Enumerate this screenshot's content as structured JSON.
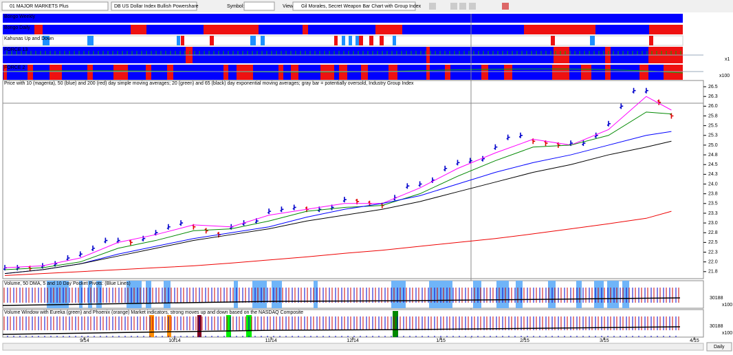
{
  "toolbar": {
    "watchlist": "01 MAJOR MARKETS Plus",
    "symbol_name": "DB US Dollar Index Bullish Powershare",
    "symbol_label": "Symbol:",
    "view_label": "View:",
    "view": "Gil Morales, Secret Weapon Bar Chart with Group Index"
  },
  "indicator_panels": [
    {
      "label": "Bongo Weekly"
    },
    {
      "label": "Bongo Daily"
    },
    {
      "label": "Kahunas Up and Down"
    },
    {
      "label": "FORCE 13",
      "scale": "x1"
    },
    {
      "label": "FORCE 2",
      "scale": "x100"
    }
  ],
  "volume_panels": [
    {
      "label": "Volume, 50 DMA, 5 and 10 Day Pocket Pivots: (Blue Lines)",
      "level": "30188",
      "scale": "x100"
    },
    {
      "label": "Volume Window with Eureka (green) and Phoenix (orange) Market indicators, strong moves up and down based on the NASDAQ Composite",
      "level": "30188",
      "scale": "x100"
    }
  ],
  "period": "Daily",
  "chart_data": {
    "type": "line",
    "title": "Price with 10 (magenta), 50 (blue) and 200 (red) day simple moving averages; 20 (green) and 65 (black) day exponential moving averages; gray bar = potentially oversold, Industry Group Index",
    "x": [
      0,
      3,
      6,
      9,
      12,
      15,
      18,
      21,
      24,
      27,
      30,
      33,
      36,
      39,
      42,
      45,
      48,
      51,
      54,
      57,
      60,
      63,
      66,
      69,
      72,
      75,
      78,
      81,
      84,
      87,
      90,
      93,
      96,
      99,
      102,
      105,
      108,
      111,
      114,
      117,
      120,
      123,
      126,
      129,
      132,
      135,
      138,
      141,
      144,
      147,
      150,
      153,
      156,
      159
    ],
    "xlim": [
      -0.5,
      165
    ],
    "xticks": [
      {
        "value": 19,
        "label": "9/14"
      },
      {
        "value": 40.5,
        "label": "10/14"
      },
      {
        "value": 63.5,
        "label": "11/14"
      },
      {
        "value": 83,
        "label": "12/14"
      },
      {
        "value": 104,
        "label": "1/15"
      },
      {
        "value": 124,
        "label": "2/15"
      },
      {
        "value": 143,
        "label": "3/15"
      },
      {
        "value": 164.5,
        "label": "4/15"
      }
    ],
    "ylim": [
      21.57,
      26.66
    ],
    "yticks": [
      26.5,
      {
        "value": 26.25,
        "label": "26.3"
      },
      {
        "value": 26,
        "label": "26.0"
      },
      {
        "value": 25.75,
        "label": "25.8"
      },
      25.5,
      {
        "value": 25.25,
        "label": "25.3"
      },
      {
        "value": 25,
        "label": "25.0"
      },
      {
        "value": 24.75,
        "label": "24.8"
      },
      24.5,
      {
        "value": 24.25,
        "label": "24.3"
      },
      {
        "value": 24,
        "label": "24.0"
      },
      {
        "value": 23.75,
        "label": "23.8"
      },
      23.5,
      {
        "value": 23.25,
        "label": "23.3"
      },
      {
        "value": 23,
        "label": "23.0"
      },
      {
        "value": 22.75,
        "label": "22.8"
      },
      22.5,
      {
        "value": 22.25,
        "label": "22.3"
      },
      {
        "value": 22,
        "label": "22.0"
      },
      {
        "value": 21.75,
        "label": "21.8"
      }
    ],
    "grid": false,
    "series": [
      {
        "style": "bar",
        "color": "#0000cc",
        "down_color": "#e00000",
        "values": [
          21.85,
          21.85,
          21.83,
          21.9,
          21.95,
          22.1,
          22.2,
          22.35,
          22.55,
          22.55,
          22.5,
          22.6,
          22.75,
          22.9,
          23.0,
          22.9,
          22.8,
          22.7,
          22.9,
          23.0,
          23.05,
          23.3,
          23.35,
          23.4,
          23.35,
          23.35,
          23.4,
          23.6,
          23.55,
          23.5,
          23.45,
          23.65,
          23.95,
          24.0,
          24.1,
          24.4,
          24.55,
          24.6,
          24.65,
          24.95,
          25.2,
          25.25,
          25.1,
          25.05,
          25.0,
          25.05,
          25.05,
          25.25,
          25.55,
          26.0,
          26.4,
          26.4,
          26.1,
          25.75
        ]
      },
      {
        "style": "line",
        "color": "#ff00ff",
        "x": [
          0,
          9,
          18,
          27,
          36,
          45,
          54,
          63,
          72,
          81,
          90,
          99,
          108,
          117,
          126,
          135,
          144,
          153,
          159
        ],
        "values": [
          21.85,
          21.9,
          22.1,
          22.5,
          22.7,
          22.95,
          22.9,
          23.2,
          23.35,
          23.5,
          23.5,
          23.9,
          24.4,
          24.8,
          25.15,
          25.0,
          25.4,
          26.25,
          25.9
        ]
      },
      {
        "style": "line",
        "color": "#008800",
        "x": [
          0,
          9,
          18,
          27,
          36,
          45,
          54,
          63,
          72,
          81,
          90,
          99,
          108,
          117,
          126,
          135,
          144,
          153,
          159
        ],
        "values": [
          21.8,
          21.85,
          22.0,
          22.35,
          22.55,
          22.8,
          22.85,
          23.05,
          23.3,
          23.4,
          23.45,
          23.75,
          24.2,
          24.6,
          24.95,
          25.0,
          25.25,
          25.85,
          25.8
        ]
      },
      {
        "style": "line",
        "color": "#0000ff",
        "x": [
          0,
          9,
          18,
          27,
          36,
          45,
          54,
          63,
          72,
          81,
          90,
          99,
          108,
          117,
          126,
          135,
          144,
          153,
          159
        ],
        "values": [
          21.7,
          21.8,
          21.95,
          22.2,
          22.4,
          22.6,
          22.75,
          22.9,
          23.15,
          23.35,
          23.5,
          23.7,
          24.0,
          24.3,
          24.55,
          24.75,
          25.0,
          25.25,
          25.35
        ]
      },
      {
        "style": "line",
        "color": "#000000",
        "x": [
          0,
          9,
          18,
          27,
          36,
          45,
          54,
          63,
          72,
          81,
          90,
          99,
          108,
          117,
          126,
          135,
          144,
          153,
          159
        ],
        "values": [
          21.7,
          21.8,
          21.95,
          22.15,
          22.35,
          22.55,
          22.7,
          22.85,
          23.05,
          23.2,
          23.35,
          23.55,
          23.8,
          24.05,
          24.3,
          24.5,
          24.75,
          24.95,
          25.1
        ]
      },
      {
        "style": "line",
        "color": "#ee0000",
        "x": [
          0,
          9,
          18,
          27,
          36,
          45,
          54,
          63,
          72,
          81,
          90,
          99,
          108,
          117,
          126,
          135,
          144,
          153,
          159
        ],
        "values": [
          21.65,
          21.7,
          21.75,
          21.8,
          21.85,
          21.9,
          21.97,
          22.05,
          22.13,
          22.22,
          22.3,
          22.4,
          22.5,
          22.6,
          22.72,
          22.85,
          22.98,
          23.12,
          23.3
        ]
      }
    ]
  }
}
